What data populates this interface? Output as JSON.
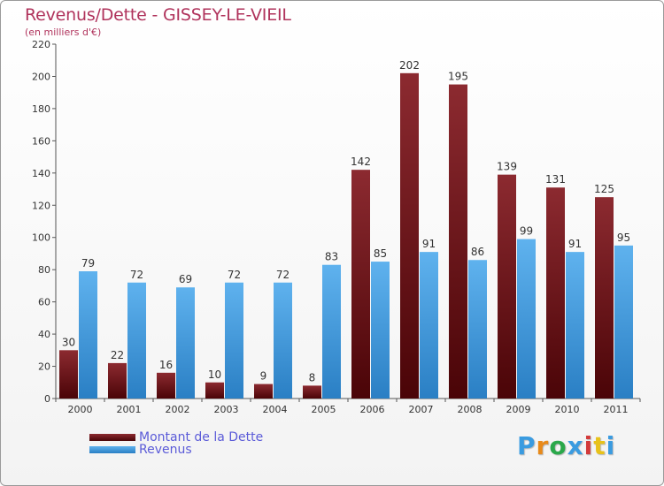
{
  "title": "Revenus/Dette - GISSEY-LE-VIEIL",
  "subtitle": "(en milliers d'€)",
  "legend": {
    "debt_label": "Montant de la Dette",
    "revenue_label": "Revenus"
  },
  "logo_text": "Proxiti",
  "colors": {
    "debt": "#7a1518",
    "revenue": "#3a9be0",
    "title": "#b0335c",
    "legend_text": "#5b5bd8"
  },
  "chart_data": {
    "type": "bar",
    "categories": [
      "2000",
      "2001",
      "2002",
      "2003",
      "2004",
      "2005",
      "2006",
      "2007",
      "2008",
      "2009",
      "2010",
      "2011"
    ],
    "series": [
      {
        "name": "Montant de la Dette",
        "values": [
          30,
          22,
          16,
          10,
          9,
          8,
          142,
          202,
          195,
          139,
          131,
          125
        ]
      },
      {
        "name": "Revenus",
        "values": [
          79,
          72,
          69,
          72,
          72,
          83,
          85,
          91,
          86,
          99,
          91,
          95
        ]
      }
    ],
    "ylim": [
      0,
      220
    ],
    "yticks": [
      0,
      20,
      40,
      60,
      80,
      100,
      120,
      140,
      160,
      180,
      200,
      220
    ],
    "grid": false,
    "legend_position": "bottom-left"
  }
}
